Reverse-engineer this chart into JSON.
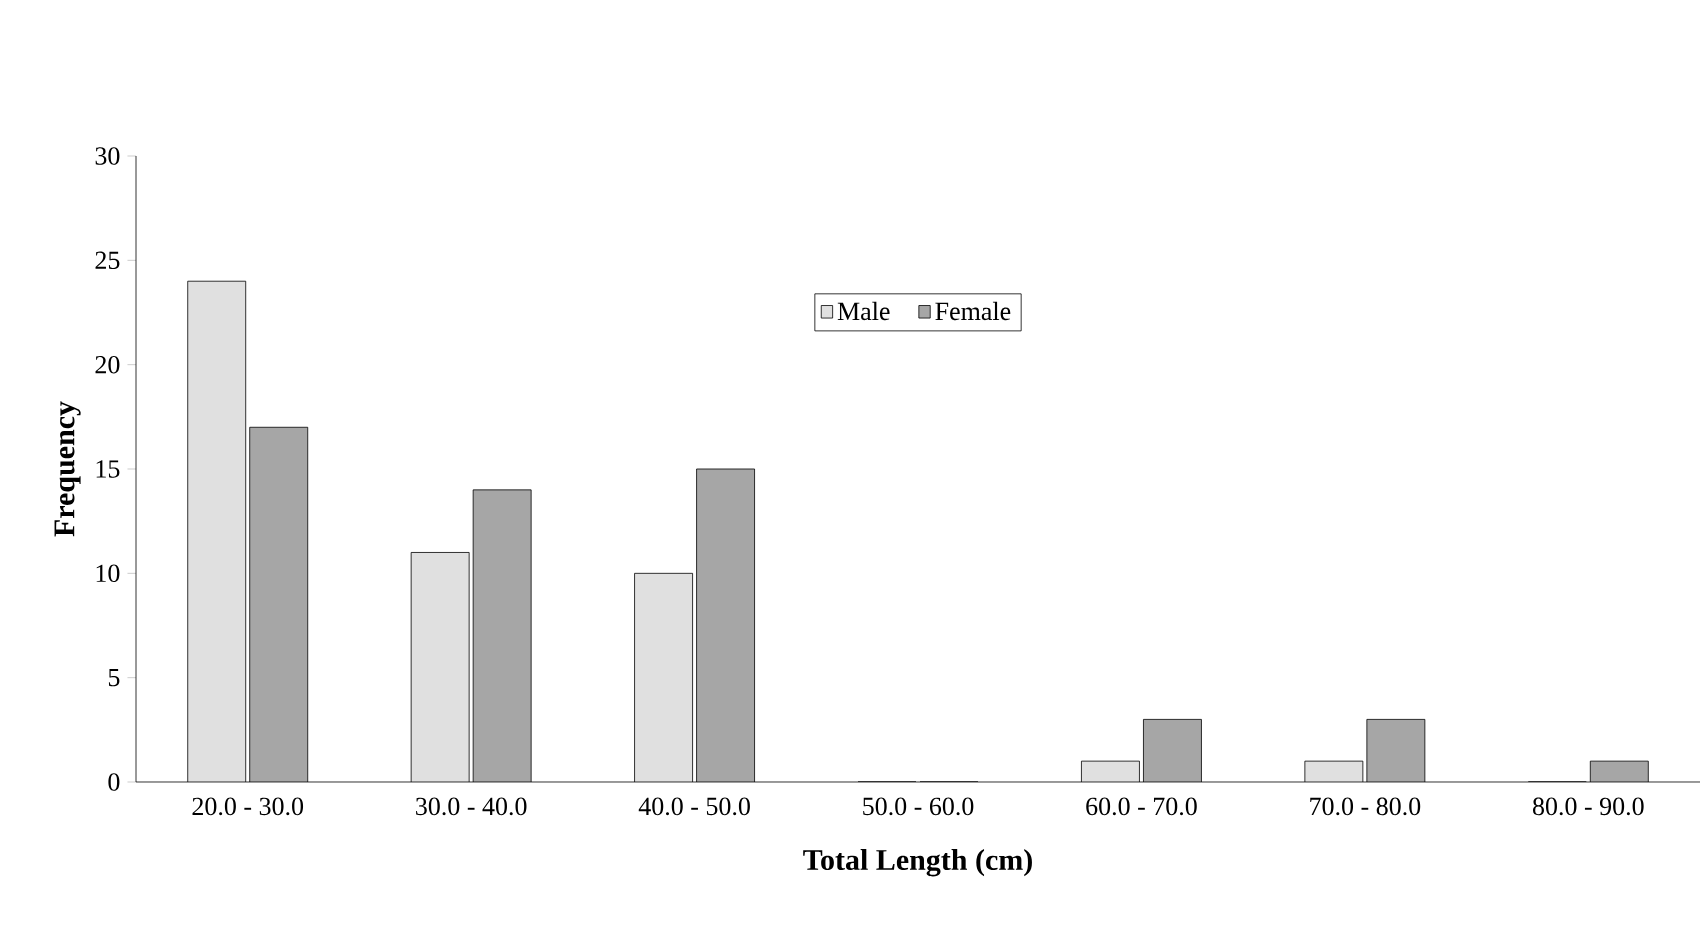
{
  "chart_data": {
    "type": "bar",
    "xlabel": "Total Length (cm)",
    "ylabel": "Frequency",
    "categories": [
      "20.0 - 30.0",
      "30.0 - 40.0",
      "40.0 - 50.0",
      "50.0 - 60.0",
      "60.0 - 70.0",
      "70.0 - 80.0",
      "80.0 - 90.0"
    ],
    "series": [
      {
        "name": "Male",
        "color": "#e0e0e0",
        "values": [
          24,
          11,
          10,
          0,
          1,
          1,
          0
        ]
      },
      {
        "name": "Female",
        "color": "#a6a6a6",
        "values": [
          17,
          14,
          15,
          0,
          3,
          3,
          1
        ]
      }
    ],
    "ylim": [
      0,
      30
    ],
    "yticks": [
      0,
      5,
      10,
      15,
      20,
      25,
      30
    ],
    "grid": false,
    "legend": "top"
  }
}
